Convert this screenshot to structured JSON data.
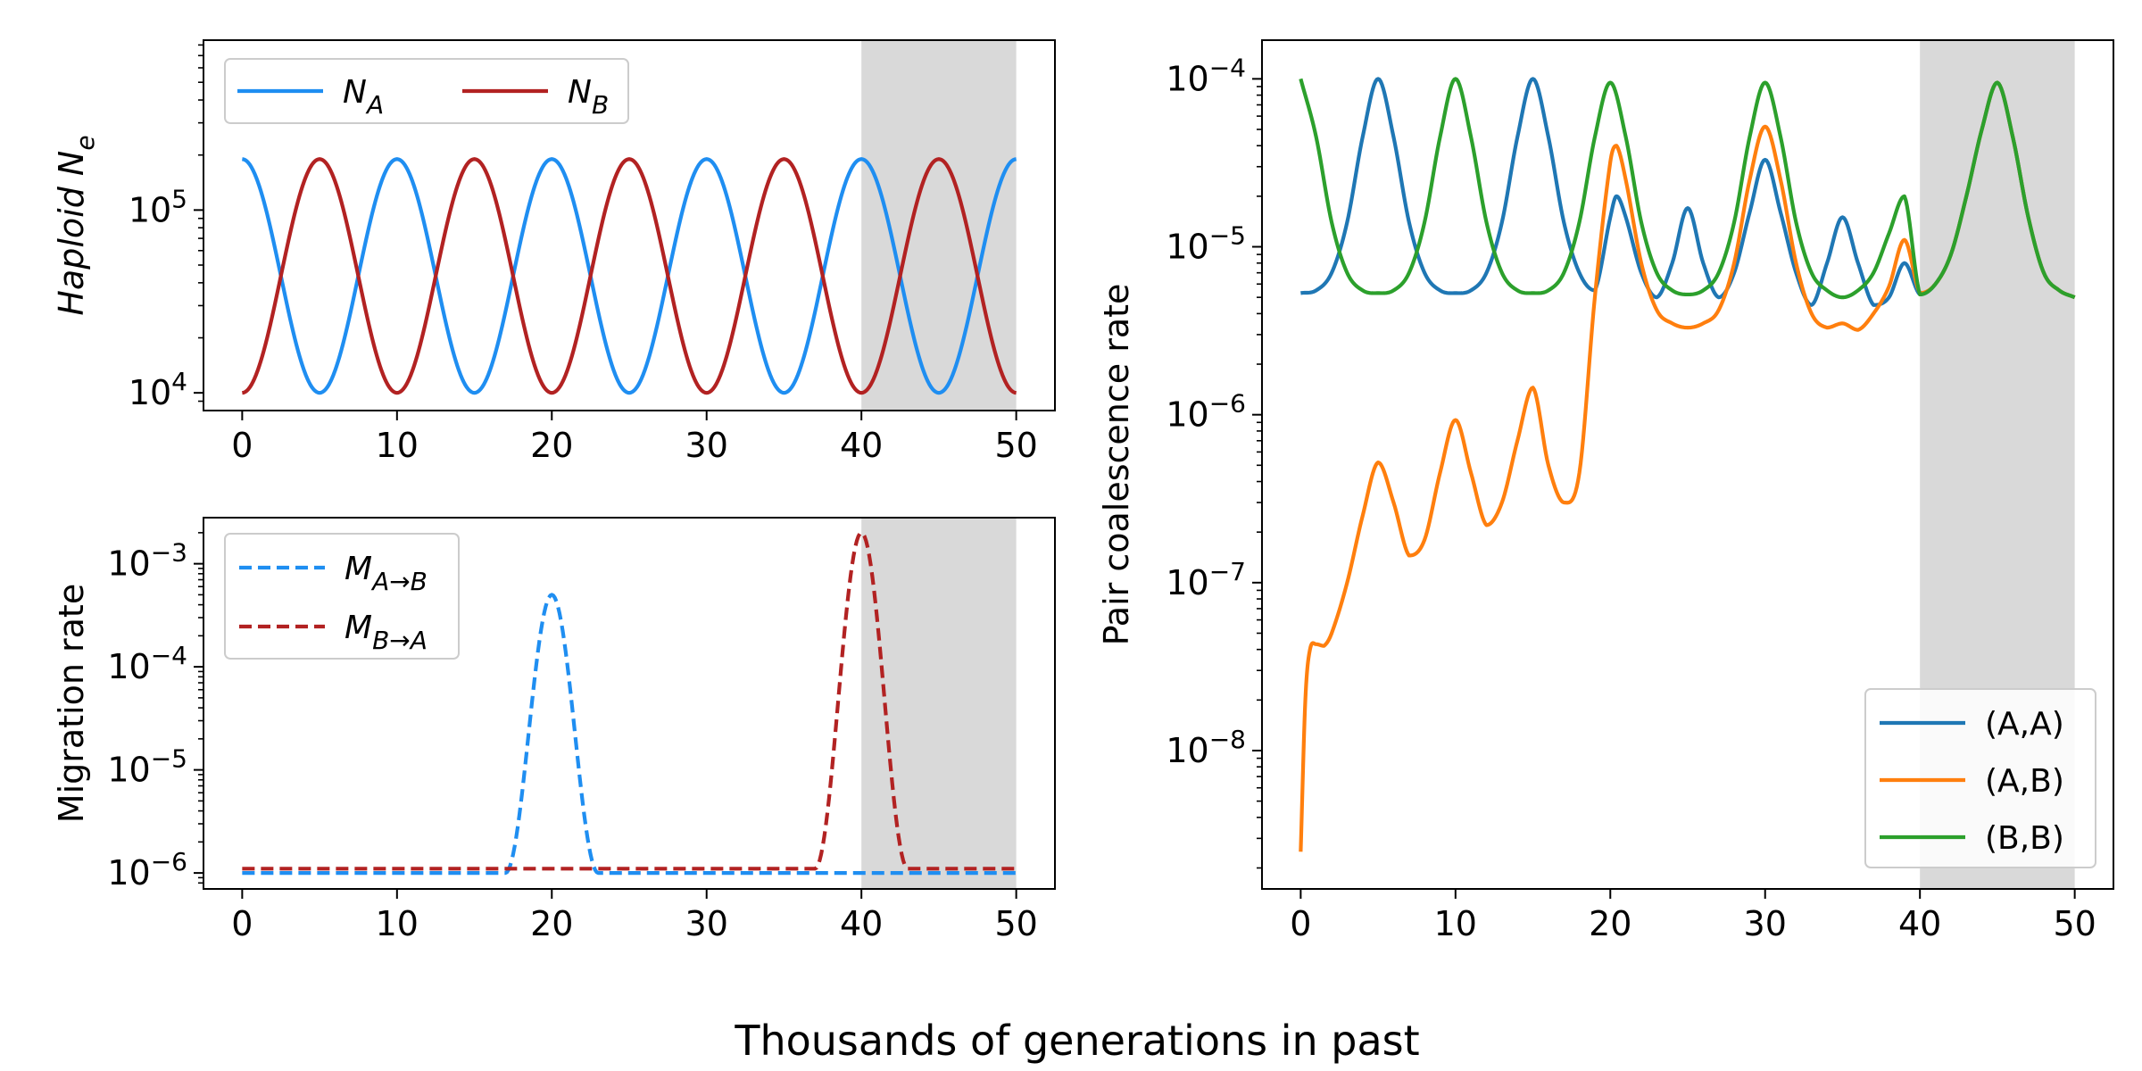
{
  "figure": {
    "xlabel": "Thousands of generations in past"
  },
  "chart_data": [
    {
      "id": "ne",
      "type": "line",
      "ylabel": "Haploid N_e",
      "yscale": "log",
      "xlim": [
        -2.5,
        52.5
      ],
      "ylim": [
        8000,
        850000
      ],
      "shaded_x": [
        40,
        50
      ],
      "x_ticks": [
        0,
        10,
        20,
        30,
        40,
        50
      ],
      "y_ticks": [
        {
          "value": 10000,
          "label": "10^4"
        },
        {
          "value": 100000,
          "label": "10^5"
        }
      ],
      "legend": {
        "placement": "top-left",
        "columns": 2
      },
      "series": [
        {
          "name": "N_A",
          "color": "#1f8ef1",
          "dash": "solid",
          "model": "cos",
          "phase": 0,
          "period": 10,
          "min": 10000,
          "max": 190000,
          "x": [
            0,
            2.5,
            5,
            7.5,
            10,
            12.5,
            15,
            17.5,
            20,
            22.5,
            25,
            27.5,
            30,
            32.5,
            35,
            37.5,
            40,
            42.5,
            45,
            47.5,
            50
          ],
          "y": [
            190000,
            43600,
            10000,
            43600,
            190000,
            43600,
            10000,
            43600,
            190000,
            43600,
            10000,
            43600,
            190000,
            43600,
            10000,
            43600,
            190000,
            43600,
            10000,
            43600,
            190000
          ]
        },
        {
          "name": "N_B",
          "color": "#b22222",
          "dash": "solid",
          "model": "cos",
          "phase": 5,
          "period": 10,
          "min": 10000,
          "max": 190000,
          "x": [
            0,
            2.5,
            5,
            7.5,
            10,
            12.5,
            15,
            17.5,
            20,
            22.5,
            25,
            27.5,
            30,
            32.5,
            35,
            37.5,
            40,
            42.5,
            45,
            47.5,
            50
          ],
          "y": [
            10000,
            43600,
            190000,
            43600,
            10000,
            43600,
            190000,
            43600,
            10000,
            43600,
            190000,
            43600,
            10000,
            43600,
            190000,
            43600,
            10000,
            43600,
            190000,
            43600,
            10000
          ]
        }
      ]
    },
    {
      "id": "mig",
      "type": "line",
      "ylabel": "Migration rate",
      "yscale": "log",
      "xlim": [
        -2.5,
        52.5
      ],
      "ylim": [
        7e-07,
        0.0028
      ],
      "shaded_x": [
        40,
        50
      ],
      "x_ticks": [
        0,
        10,
        20,
        30,
        40,
        50
      ],
      "y_ticks": [
        {
          "value": 1e-06,
          "label": "10^-6"
        },
        {
          "value": 1e-05,
          "label": "10^-5"
        },
        {
          "value": 0.0001,
          "label": "10^-4"
        },
        {
          "value": 0.001,
          "label": "10^-3"
        }
      ],
      "legend": {
        "placement": "top-left",
        "columns": 1
      },
      "series": [
        {
          "name": "M_{A→B}",
          "color": "#1f8ef1",
          "dash": "dashed",
          "model": "pulse",
          "base": 1e-06,
          "peak": 0.0005,
          "center": 20,
          "halfwidth": 3,
          "x": [
            0,
            17,
            18,
            19,
            20,
            21,
            22,
            23,
            50
          ],
          "y": [
            1e-06,
            1e-06,
            2.1e-05,
            0.00022,
            0.0005,
            0.00022,
            2.1e-05,
            1e-06,
            1e-06
          ]
        },
        {
          "name": "M_{B→A}",
          "color": "#b22222",
          "dash": "dashed",
          "model": "pulse",
          "base": 1.1e-06,
          "peak": 0.002,
          "center": 40,
          "halfwidth": 3,
          "x": [
            0,
            37,
            38,
            39,
            40,
            41,
            42,
            43,
            50
          ],
          "y": [
            1.1e-06,
            1.1e-06,
            5.5e-05,
            0.00075,
            0.002,
            0.00075,
            5.5e-05,
            1.1e-06,
            1.1e-06
          ]
        }
      ]
    },
    {
      "id": "coal",
      "type": "line",
      "ylabel": "Pair coalescence rate",
      "yscale": "log",
      "xlim": [
        -2.5,
        52.5
      ],
      "ylim": [
        1.5e-09,
        0.00017
      ],
      "shaded_x": [
        40,
        50
      ],
      "x_ticks": [
        0,
        10,
        20,
        30,
        40,
        50
      ],
      "y_ticks": [
        {
          "value": 1e-08,
          "label": "10^-8"
        },
        {
          "value": 1e-07,
          "label": "10^-7"
        },
        {
          "value": 1e-06,
          "label": "10^-6"
        },
        {
          "value": 1e-05,
          "label": "10^-5"
        },
        {
          "value": 0.0001,
          "label": "10^-4"
        }
      ],
      "legend": {
        "placement": "lower-right",
        "columns": 1
      },
      "series": [
        {
          "name": "(A,A)",
          "color": "#1f77b4",
          "dash": "solid",
          "x": [
            0,
            1,
            2,
            3,
            4,
            5,
            6,
            7,
            8,
            9,
            10,
            11,
            12,
            13,
            14,
            15,
            16,
            17,
            18,
            19,
            20,
            20.4,
            21,
            22,
            23,
            24,
            25,
            26,
            27,
            28,
            29,
            30,
            31,
            32,
            33,
            34,
            35,
            36,
            37,
            38,
            39,
            40,
            41,
            42,
            43,
            44,
            45,
            46,
            47,
            48,
            49,
            50
          ],
          "y": [
            5.3e-06,
            5.5e-06,
            7e-06,
            1.4e-05,
            4.5e-05,
            0.0001,
            4.5e-05,
            1.4e-05,
            7e-06,
            5.5e-06,
            5.3e-06,
            5.5e-06,
            7e-06,
            1.4e-05,
            4.5e-05,
            0.0001,
            4.5e-05,
            1.4e-05,
            7e-06,
            5.5e-06,
            1.5e-05,
            2e-05,
            1.5e-05,
            7e-06,
            5e-06,
            8e-06,
            1.7e-05,
            8e-06,
            5e-06,
            7e-06,
            1.6e-05,
            3.3e-05,
            1.6e-05,
            7e-06,
            4.5e-06,
            8e-06,
            1.5e-05,
            8e-06,
            4.5e-06,
            5e-06,
            8e-06,
            5.2e-06,
            6e-06,
            9e-06,
            2e-05,
            5e-05,
            9.5e-05,
            4.5e-05,
            1.5e-05,
            7e-06,
            5.5e-06,
            5e-06
          ]
        },
        {
          "name": "(A,B)",
          "color": "#ff7f0e",
          "dash": "solid",
          "x": [
            0,
            0.3,
            0.6,
            1,
            1.5,
            2,
            3,
            4,
            5,
            6,
            7,
            8,
            9,
            10,
            11,
            12,
            13,
            14,
            15,
            16,
            17,
            18,
            19,
            20,
            20.4,
            21,
            22,
            23,
            24,
            25,
            26,
            27,
            28,
            29,
            30,
            31,
            32,
            33,
            34,
            35,
            36,
            37,
            38,
            39,
            40,
            41,
            42,
            43,
            44,
            45,
            46,
            47,
            48,
            49,
            50
          ],
          "y": [
            2.5e-09,
            2e-08,
            4e-08,
            4.3e-08,
            4.2e-08,
            5e-08,
            1e-07,
            2.5e-07,
            5.2e-07,
            3e-07,
            1.45e-07,
            1.8e-07,
            4.5e-07,
            9.3e-07,
            4.5e-07,
            2.2e-07,
            3e-07,
            7e-07,
            1.45e-06,
            5e-07,
            3e-07,
            4.5e-07,
            5e-06,
            3.2e-05,
            4e-05,
            2.5e-05,
            8e-06,
            4.2e-06,
            3.5e-06,
            3.3e-06,
            3.5e-06,
            4.2e-06,
            8e-06,
            2.5e-05,
            5.2e-05,
            2.5e-05,
            8e-06,
            4e-06,
            3.3e-06,
            3.5e-06,
            3.2e-06,
            4e-06,
            5.8e-06,
            1.1e-05,
            5.3e-06,
            6e-06,
            9e-06,
            2e-05,
            5e-05,
            9.5e-05,
            4.5e-05,
            1.5e-05,
            7e-06,
            5.5e-06,
            5e-06
          ]
        },
        {
          "name": "(B,B)",
          "color": "#2ca02c",
          "dash": "solid",
          "x": [
            0,
            1,
            2,
            3,
            4,
            5,
            6,
            7,
            8,
            9,
            10,
            11,
            12,
            13,
            14,
            15,
            16,
            17,
            18,
            19,
            20,
            21,
            22,
            23,
            24,
            25,
            26,
            27,
            28,
            29,
            30,
            31,
            32,
            33,
            34,
            35,
            36,
            37,
            38,
            39,
            40,
            41,
            42,
            43,
            44,
            45,
            46,
            47,
            48,
            49,
            50
          ],
          "y": [
            0.0001,
            4.5e-05,
            1.4e-05,
            7e-06,
            5.5e-06,
            5.3e-06,
            5.5e-06,
            7e-06,
            1.4e-05,
            4.5e-05,
            0.0001,
            4.5e-05,
            1.4e-05,
            7e-06,
            5.5e-06,
            5.3e-06,
            5.5e-06,
            7e-06,
            1.4e-05,
            4.5e-05,
            9.5e-05,
            4.5e-05,
            1.4e-05,
            7e-06,
            5.5e-06,
            5.2e-06,
            5.5e-06,
            7e-06,
            1.4e-05,
            4.5e-05,
            9.5e-05,
            4.5e-05,
            1.4e-05,
            7e-06,
            5.5e-06,
            5e-06,
            5.5e-06,
            7e-06,
            1.2e-05,
            2e-05,
            5.2e-06,
            6e-06,
            9e-06,
            2e-05,
            5e-05,
            9.5e-05,
            4.5e-05,
            1.5e-05,
            7e-06,
            5.5e-06,
            5e-06
          ]
        }
      ]
    }
  ]
}
